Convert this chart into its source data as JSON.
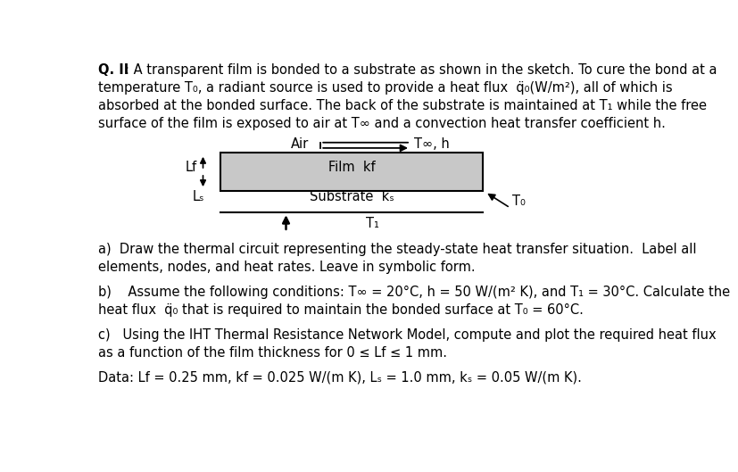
{
  "background_color": "#ffffff",
  "text_color": "#000000",
  "font_size": 10.5,
  "diagram": {
    "film_fill": "#c8c8c8",
    "film_edge": "#000000"
  },
  "lines": [
    {
      "x": 8,
      "bold_part": "Q. II",
      "rest": ": A transparent film is bonded to a substrate as shown in the sketch. To cure the bond at a"
    },
    {
      "x": 8,
      "bold_part": null,
      "rest": "temperature T₀, a radiant source is used to provide a heat flux  äq₀(W/m²), all of which is"
    },
    {
      "x": 8,
      "bold_part": null,
      "rest": "absorbed at the bonded surface. The back of the substrate is maintained at T₁ while the free"
    },
    {
      "x": 8,
      "bold_part": null,
      "rest": "surface of the film is exposed to air at T∞ and a convection heat transfer coefficient h."
    }
  ],
  "part_a_lines": [
    "a)  Draw the thermal circuit representing the steady-state heat transfer situation.  Label all",
    "elements, nodes, and heat rates. Leave in symbolic form."
  ],
  "part_b_lines": [
    "b)    Assume the following conditions: T∞ = 20°C, h = 50 W/(m² K), and T₁ = 30°C. Calculate the",
    "heat flux  äq₀ that is required to maintain the bonded surface at T₀ = 60°C."
  ],
  "part_c_lines": [
    "c)   Using the IHT Thermal Resistance Network Model, compute and plot the required heat flux",
    "as a function of the film thickness for 0 ≤ Lf ≤ 1 mm."
  ],
  "data_line": "Data: Lf = 0.25 mm, kf = 0.025 W/(m K), Lₛ = 1.0 mm, kₛ = 0.05 W/(m K)."
}
